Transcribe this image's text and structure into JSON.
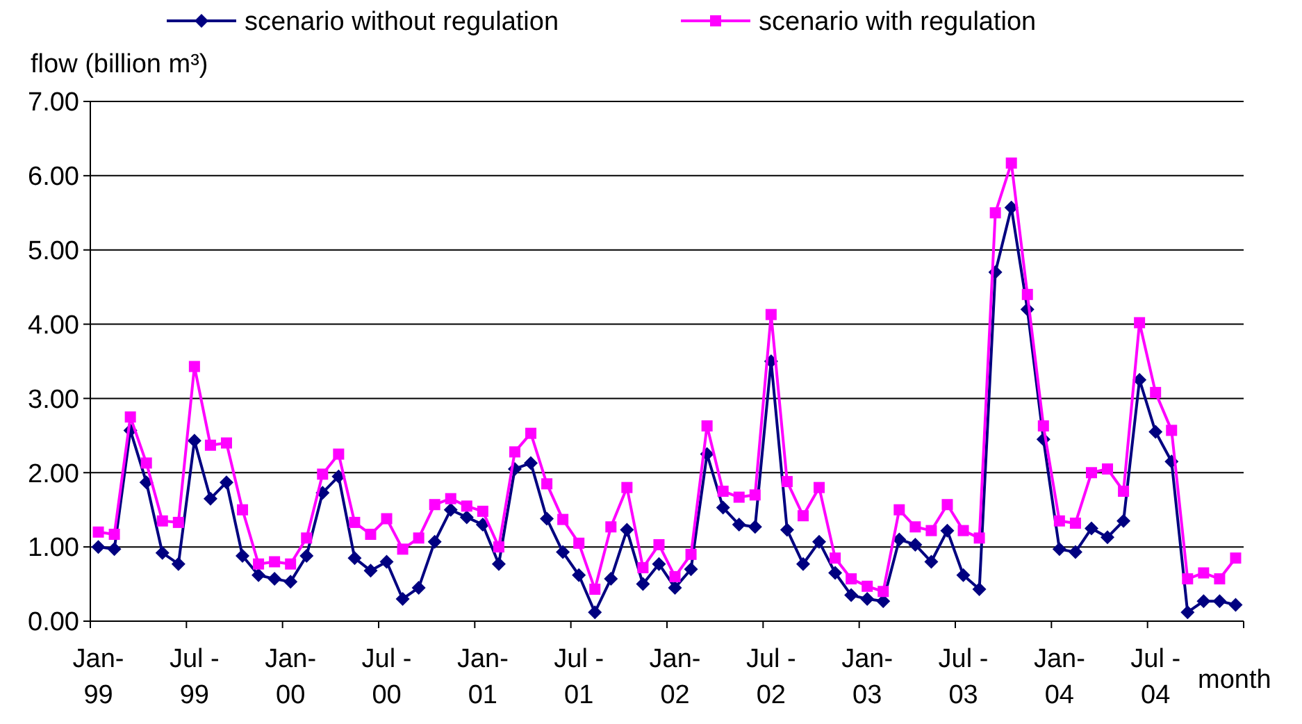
{
  "chart_data": {
    "type": "line",
    "ylabel": "flow (billion m³)",
    "xlabel": "month",
    "legend": "top",
    "grid": "y",
    "line_style": "solid",
    "categories": [
      "Jan-99",
      null,
      null,
      null,
      null,
      null,
      "Jul -99",
      null,
      null,
      null,
      null,
      null,
      "Jan-00",
      null,
      null,
      null,
      null,
      null,
      "Jul -00",
      null,
      null,
      null,
      null,
      null,
      "Jan-01",
      null,
      null,
      null,
      null,
      null,
      "Jul -01",
      null,
      null,
      null,
      null,
      null,
      "Jan-02",
      null,
      null,
      null,
      null,
      null,
      "Jul -02",
      null,
      null,
      null,
      null,
      null,
      "Jan-03",
      null,
      null,
      null,
      null,
      null,
      "Jul -03",
      null,
      null,
      null,
      null,
      null,
      "Jan-04",
      null,
      null,
      null,
      null,
      null,
      "Jul -04",
      null,
      null,
      null,
      null,
      null
    ],
    "ylim": [
      0,
      7
    ],
    "yticks": [
      {
        "value": 0,
        "label": "0.00"
      },
      {
        "value": 1,
        "label": "1.00"
      },
      {
        "value": 2,
        "label": "2.00"
      },
      {
        "value": 3,
        "label": "3.00"
      },
      {
        "value": 4,
        "label": "4.00"
      },
      {
        "value": 5,
        "label": "5.00"
      },
      {
        "value": 6,
        "label": "6.00"
      },
      {
        "value": 7,
        "label": "7.00"
      }
    ],
    "series": [
      {
        "name": "scenario without regulation",
        "color": "#000080",
        "marker": "diamond",
        "values": [
          1.0,
          0.97,
          2.57,
          1.87,
          0.92,
          0.77,
          2.43,
          1.65,
          1.87,
          0.88,
          0.62,
          0.57,
          0.53,
          0.88,
          1.73,
          1.95,
          0.85,
          0.68,
          0.8,
          0.3,
          0.45,
          1.07,
          1.5,
          1.4,
          1.3,
          0.77,
          2.05,
          2.13,
          1.38,
          0.93,
          0.62,
          0.12,
          0.57,
          1.23,
          0.5,
          0.77,
          0.45,
          0.7,
          2.25,
          1.53,
          1.3,
          1.27,
          3.5,
          1.23,
          0.77,
          1.07,
          0.65,
          0.35,
          0.3,
          0.27,
          1.1,
          1.03,
          0.8,
          1.22,
          0.62,
          0.43,
          4.7,
          5.57,
          4.2,
          2.45,
          0.97,
          0.93,
          1.25,
          1.13,
          1.35,
          3.25,
          2.55,
          2.15,
          0.12,
          0.27,
          0.27,
          0.22
        ]
      },
      {
        "name": "scenario with regulation",
        "color": "#ff00ff",
        "marker": "square",
        "values": [
          1.2,
          1.17,
          2.75,
          2.13,
          1.35,
          1.33,
          3.43,
          2.37,
          2.4,
          1.5,
          0.77,
          0.8,
          0.77,
          1.12,
          1.98,
          2.25,
          1.33,
          1.17,
          1.38,
          0.97,
          1.12,
          1.57,
          1.65,
          1.55,
          1.48,
          1.0,
          2.28,
          2.53,
          1.85,
          1.37,
          1.05,
          0.43,
          1.27,
          1.8,
          0.72,
          1.03,
          0.6,
          0.9,
          2.63,
          1.75,
          1.67,
          1.7,
          4.13,
          1.88,
          1.42,
          1.8,
          0.85,
          0.57,
          0.47,
          0.4,
          1.5,
          1.27,
          1.22,
          1.57,
          1.22,
          1.12,
          5.5,
          6.17,
          4.4,
          2.63,
          1.35,
          1.32,
          2.0,
          2.05,
          1.75,
          4.02,
          3.08,
          2.57,
          0.57,
          0.65,
          0.57,
          0.85
        ]
      }
    ]
  }
}
